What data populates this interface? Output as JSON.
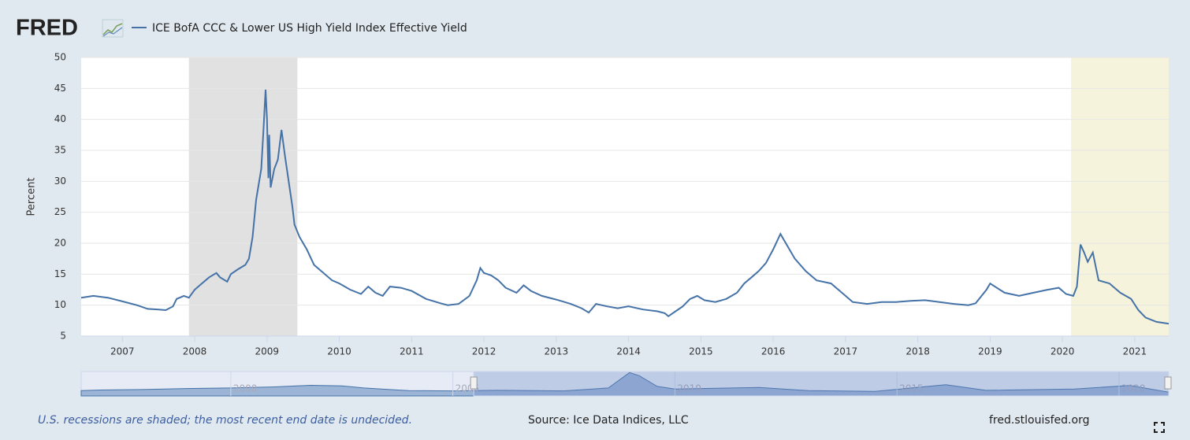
{
  "brand": "FRED",
  "chart_data": {
    "type": "line",
    "series": [
      {
        "name": "ICE BofA CCC & Lower US High Yield Index Effective Yield",
        "color": "#4572a7",
        "values": [
          11.2,
          11.5,
          11.2,
          10.6,
          10.0,
          9.4,
          9.3,
          9.2,
          9.8,
          11.0,
          11.5,
          11.2,
          12.5,
          13.5,
          14.5,
          15.2,
          14.5,
          13.8,
          15.0,
          15.8,
          16.5,
          17.5,
          21,
          27,
          32,
          38,
          44.8,
          40,
          30.5,
          37.5,
          29,
          32,
          33.5,
          38.3,
          34,
          30,
          26,
          23,
          21,
          19,
          16.5,
          15.5,
          14.0,
          13.5,
          12.5,
          11.8,
          13.0,
          12.0,
          11.5,
          13.0,
          12.8,
          12.3,
          11.0,
          10.3,
          10.0,
          10.2,
          11.5,
          14.0,
          16.0,
          15.2,
          14.8,
          14.0,
          12.8,
          12.0,
          13.2,
          12.3,
          11.5,
          10.9,
          10.2,
          9.5,
          8.8,
          10.2,
          9.8,
          9.5,
          9.8,
          9.3,
          9.0,
          8.7,
          8.2,
          9.0,
          9.8,
          11.0,
          11.5,
          10.8,
          10.5,
          11.0,
          12.0,
          13.5,
          14.5,
          15.5,
          16.8,
          19.0,
          21.5,
          19.5,
          17.5,
          15.5,
          14.0,
          13.5,
          12.0,
          10.5,
          10.2,
          10.5,
          10.5,
          10.7,
          10.8,
          10.5,
          10.2,
          10.0,
          10.3,
          12.5,
          13.5,
          12.0,
          11.5,
          12.0,
          12.5,
          12.8,
          11.8,
          11.5,
          13.0,
          19.8,
          18.5,
          17.0,
          18.5,
          14.0,
          13.5,
          12.0,
          11.0,
          9.2,
          8.0,
          7.3,
          7.0
        ]
      }
    ],
    "x": [
      2006.43,
      2006.6,
      2006.8,
      2007.0,
      2007.2,
      2007.35,
      2007.5,
      2007.6,
      2007.7,
      2007.75,
      2007.85,
      2007.92,
      2008.0,
      2008.1,
      2008.2,
      2008.3,
      2008.35,
      2008.45,
      2008.5,
      2008.6,
      2008.7,
      2008.75,
      2008.8,
      2008.85,
      2008.92,
      2008.95,
      2008.98,
      2009.0,
      2009.02,
      2009.03,
      2009.05,
      2009.1,
      2009.15,
      2009.2,
      2009.25,
      2009.3,
      2009.35,
      2009.38,
      2009.45,
      2009.55,
      2009.65,
      2009.75,
      2009.9,
      2010.0,
      2010.15,
      2010.3,
      2010.4,
      2010.5,
      2010.6,
      2010.7,
      2010.85,
      2011.0,
      2011.2,
      2011.4,
      2011.5,
      2011.65,
      2011.8,
      2011.9,
      2011.95,
      2012.0,
      2012.1,
      2012.2,
      2012.3,
      2012.45,
      2012.55,
      2012.65,
      2012.8,
      2013.0,
      2013.2,
      2013.35,
      2013.45,
      2013.55,
      2013.7,
      2013.85,
      2014.0,
      2014.2,
      2014.4,
      2014.5,
      2014.55,
      2014.65,
      2014.75,
      2014.85,
      2014.95,
      2015.05,
      2015.2,
      2015.35,
      2015.5,
      2015.6,
      2015.7,
      2015.8,
      2015.9,
      2016.0,
      2016.1,
      2016.2,
      2016.3,
      2016.45,
      2016.6,
      2016.8,
      2016.95,
      2017.1,
      2017.3,
      2017.5,
      2017.7,
      2017.9,
      2018.1,
      2018.3,
      2018.5,
      2018.7,
      2018.8,
      2018.95,
      2019.0,
      2019.2,
      2019.4,
      2019.6,
      2019.8,
      2019.95,
      2020.05,
      2020.15,
      2020.2,
      2020.25,
      2020.3,
      2020.35,
      2020.42,
      2020.5,
      2020.65,
      2020.8,
      2020.95,
      2021.05,
      2021.15,
      2021.3,
      2021.47
    ],
    "xlim": [
      2006.43,
      2021.47
    ],
    "xticks": [
      2007,
      2008,
      2009,
      2010,
      2011,
      2012,
      2013,
      2014,
      2015,
      2016,
      2017,
      2018,
      2019,
      2020,
      2021
    ],
    "ylim": [
      5,
      50
    ],
    "yticks": [
      5,
      10,
      15,
      20,
      25,
      30,
      35,
      40,
      45,
      50
    ],
    "y_label": "Percent",
    "grid": true,
    "shaded_regions": [
      {
        "start": 2007.92,
        "end": 2009.42,
        "color": "#e1e1e1"
      },
      {
        "start": 2020.12,
        "end": 2021.47,
        "color": "#f5f3dc"
      }
    ],
    "navigator": {
      "x": [
        1996.63,
        1997,
        1998,
        1999,
        2000,
        2001,
        2001.8,
        2002.5,
        2003,
        2004,
        2005,
        2006,
        2007.5,
        2008.5,
        2008.98,
        2009.2,
        2009.6,
        2010,
        2011.9,
        2013,
        2014.5,
        2016.1,
        2017,
        2019,
        2020.25,
        2021.12
      ],
      "values": [
        10,
        11,
        12,
        14,
        15,
        17,
        20,
        19,
        15,
        10,
        9.5,
        10.5,
        9.5,
        15,
        44,
        38,
        18,
        13,
        16,
        10,
        8.5,
        21,
        10.5,
        13,
        19.8,
        7
      ],
      "xlim": [
        1996.63,
        2021.12
      ],
      "ylim": [
        0,
        46
      ],
      "xticks": [
        2000,
        2005,
        2010,
        2015,
        2020
      ],
      "selection": [
        2005.47,
        2021.12
      ]
    }
  },
  "footer": {
    "note": "U.S. recessions are shaded; the most recent end date is undecided.",
    "source": "Source: Ice Data Indices, LLC",
    "site": "fred.stlouisfed.org"
  }
}
